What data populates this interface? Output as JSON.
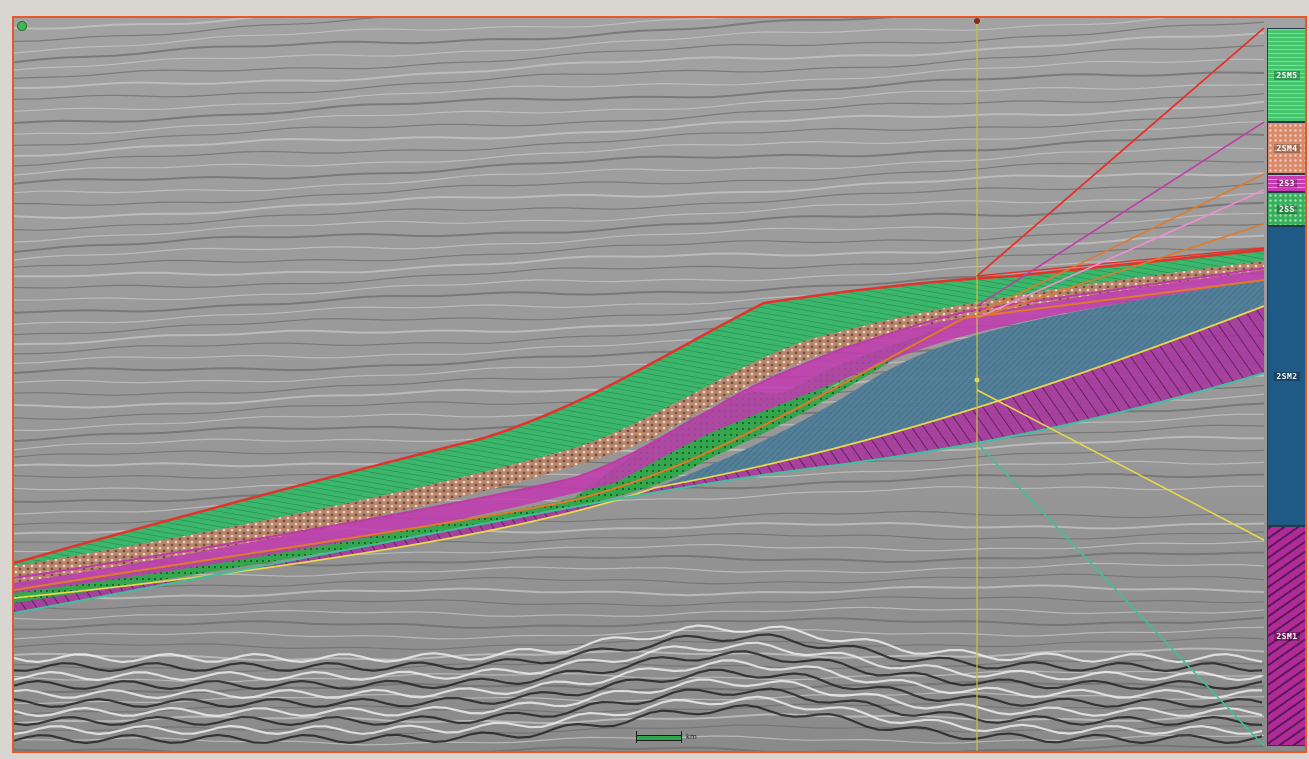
{
  "colors": {
    "frame_border": "#e8572a",
    "seismic_background": "#9a9a9a",
    "horizon_red": "#e8302a",
    "horizon_magenta": "#c03aa8",
    "horizon_orange": "#e07a2a",
    "horizon_pink": "#f08fd0",
    "horizon_yellow": "#e8d84a",
    "horizon_teal": "#3fbf9a",
    "well_marker": "#c8c43a",
    "unit_green": "#3fbf6a",
    "unit_salmon": "#d98a6a",
    "unit_magenta": "#b02a98",
    "unit_blue": "#1f5a86",
    "unit_purple": "#a03aa0"
  },
  "column_units": [
    {
      "label": "2SM5",
      "color": "#46c46e",
      "pattern": "stripes"
    },
    {
      "label": "2SM4",
      "color": "#d98a6a",
      "pattern": "dots"
    },
    {
      "label": "2S3",
      "color": "#c83ab0",
      "pattern": "stripes"
    },
    {
      "label": "2SS",
      "color": "#36b05a",
      "pattern": "dots"
    },
    {
      "label": "2SM2",
      "color": "#1f5a86",
      "pattern": "solid"
    },
    {
      "label": "2SM1",
      "color": "#b02a98",
      "pattern": "hatch"
    }
  ],
  "icons": {
    "corner": "origin-marker-icon",
    "scale": "scale-bar-icon"
  },
  "scale_bar": {
    "unit_label": "km"
  }
}
